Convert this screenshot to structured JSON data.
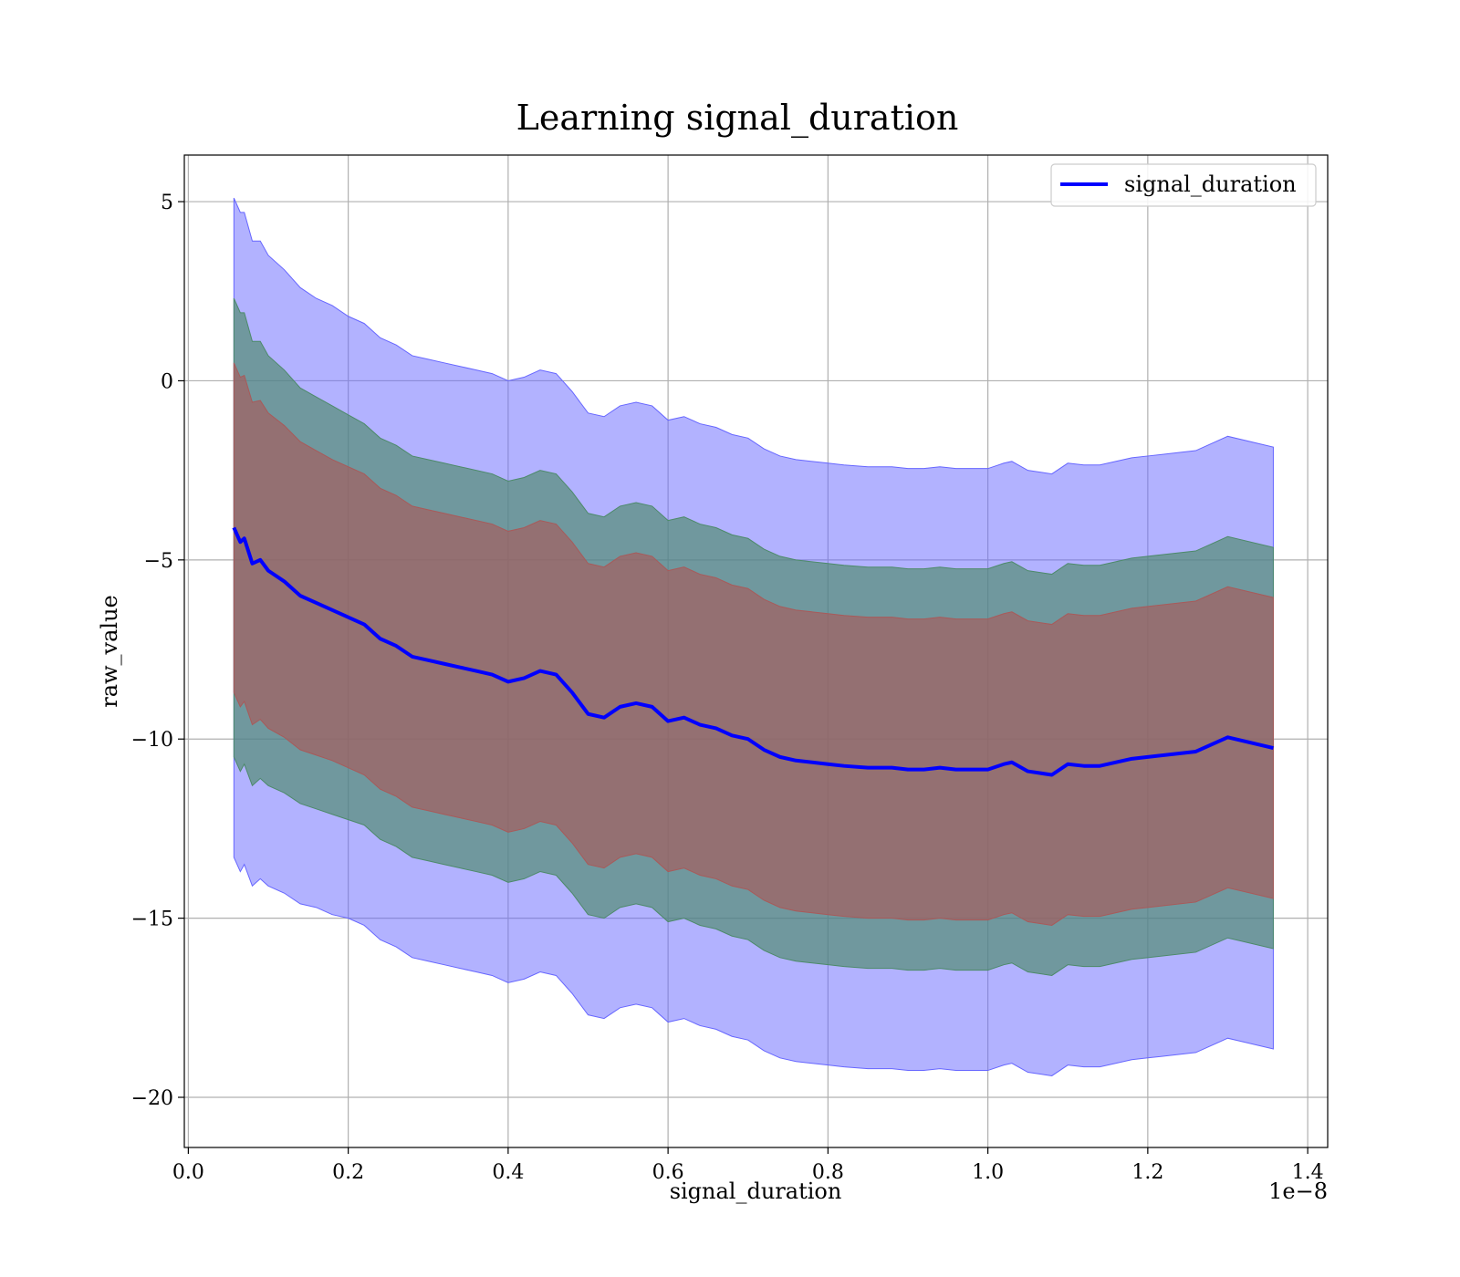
{
  "chart_data": {
    "type": "line",
    "title": "Learning signal_duration",
    "xlabel": "signal_duration",
    "ylabel": "raw_value",
    "x_offset_label": "1e−8",
    "xlim": [
      -0.005,
      1.425
    ],
    "ylim": [
      -21.4,
      6.3
    ],
    "x_ticks": [
      0.0,
      0.2,
      0.4,
      0.6,
      0.8,
      1.0,
      1.2,
      1.4
    ],
    "x_tick_labels": [
      "0.0",
      "0.2",
      "0.4",
      "0.6",
      "0.8",
      "1.0",
      "1.2",
      "1.4"
    ],
    "y_ticks": [
      5,
      0,
      -5,
      -10,
      -15,
      -20
    ],
    "y_tick_labels": [
      "5",
      "0",
      "−5",
      "−10",
      "−15",
      "−20"
    ],
    "grid": true,
    "legend_position": "top-right",
    "colors": {
      "line": "#0000ff",
      "band_outer": "#6666ff",
      "band_middle": "#4d8a6a",
      "band_inner": "#a85a5a"
    },
    "series": [
      {
        "name": "signal_duration",
        "x": [
          0.057,
          0.065,
          0.07,
          0.08,
          0.09,
          0.1,
          0.12,
          0.14,
          0.16,
          0.18,
          0.2,
          0.22,
          0.24,
          0.26,
          0.28,
          0.3,
          0.32,
          0.34,
          0.36,
          0.38,
          0.4,
          0.42,
          0.44,
          0.46,
          0.48,
          0.5,
          0.52,
          0.54,
          0.56,
          0.58,
          0.6,
          0.62,
          0.64,
          0.66,
          0.68,
          0.7,
          0.72,
          0.74,
          0.76,
          0.8,
          0.82,
          0.85,
          0.88,
          0.9,
          0.92,
          0.94,
          0.96,
          0.98,
          1.0,
          1.02,
          1.03,
          1.05,
          1.08,
          1.1,
          1.12,
          1.14,
          1.18,
          1.2,
          1.26,
          1.3,
          1.357
        ],
        "values": [
          -4.1,
          -4.5,
          -4.4,
          -5.1,
          -5.0,
          -5.3,
          -5.6,
          -6.0,
          -6.2,
          -6.4,
          -6.6,
          -6.8,
          -7.2,
          -7.4,
          -7.7,
          -7.8,
          -7.9,
          -8.0,
          -8.1,
          -8.2,
          -8.4,
          -8.3,
          -8.1,
          -8.2,
          -8.7,
          -9.3,
          -9.4,
          -9.1,
          -9.0,
          -9.1,
          -9.5,
          -9.4,
          -9.6,
          -9.7,
          -9.9,
          -10.0,
          -10.3,
          -10.5,
          -10.6,
          -10.7,
          -10.75,
          -10.8,
          -10.8,
          -10.85,
          -10.85,
          -10.8,
          -10.85,
          -10.85,
          -10.85,
          -10.7,
          -10.65,
          -10.9,
          -11.0,
          -10.7,
          -10.75,
          -10.75,
          -10.55,
          -10.5,
          -10.35,
          -9.95,
          -10.25
        ],
        "band_outer": [
          9.2,
          9.2,
          9.1,
          9.0,
          8.9,
          8.8,
          8.7,
          8.6,
          8.5,
          8.5,
          8.4,
          8.4,
          8.4,
          8.4,
          8.4,
          8.4,
          8.4,
          8.4,
          8.4,
          8.4,
          8.4,
          8.4,
          8.4,
          8.4,
          8.4,
          8.4,
          8.4,
          8.4,
          8.4,
          8.4,
          8.4,
          8.4,
          8.4,
          8.4,
          8.4,
          8.4,
          8.4,
          8.4,
          8.4,
          8.4,
          8.4,
          8.4,
          8.4,
          8.4,
          8.4,
          8.4,
          8.4,
          8.4,
          8.4,
          8.4,
          8.4,
          8.4,
          8.4,
          8.4,
          8.4,
          8.4,
          8.4,
          8.4,
          8.4,
          8.4,
          8.4
        ],
        "band_middle": [
          6.4,
          6.4,
          6.3,
          6.2,
          6.1,
          6.0,
          5.9,
          5.8,
          5.75,
          5.7,
          5.65,
          5.6,
          5.6,
          5.6,
          5.6,
          5.6,
          5.6,
          5.6,
          5.6,
          5.6,
          5.6,
          5.6,
          5.6,
          5.6,
          5.6,
          5.6,
          5.6,
          5.6,
          5.6,
          5.6,
          5.6,
          5.6,
          5.6,
          5.6,
          5.6,
          5.6,
          5.6,
          5.6,
          5.6,
          5.6,
          5.6,
          5.6,
          5.6,
          5.6,
          5.6,
          5.6,
          5.6,
          5.6,
          5.6,
          5.6,
          5.6,
          5.6,
          5.6,
          5.6,
          5.6,
          5.6,
          5.6,
          5.6,
          5.6,
          5.6,
          5.6
        ],
        "band_inner": [
          4.6,
          4.6,
          4.55,
          4.5,
          4.45,
          4.4,
          4.35,
          4.3,
          4.25,
          4.2,
          4.2,
          4.2,
          4.2,
          4.2,
          4.2,
          4.2,
          4.2,
          4.2,
          4.2,
          4.2,
          4.2,
          4.2,
          4.2,
          4.2,
          4.2,
          4.2,
          4.2,
          4.2,
          4.2,
          4.2,
          4.2,
          4.2,
          4.2,
          4.2,
          4.2,
          4.2,
          4.2,
          4.2,
          4.2,
          4.2,
          4.2,
          4.2,
          4.2,
          4.2,
          4.2,
          4.2,
          4.2,
          4.2,
          4.2,
          4.2,
          4.2,
          4.2,
          4.2,
          4.2,
          4.2,
          4.2,
          4.2,
          4.2,
          4.2,
          4.2,
          4.2
        ]
      }
    ]
  }
}
